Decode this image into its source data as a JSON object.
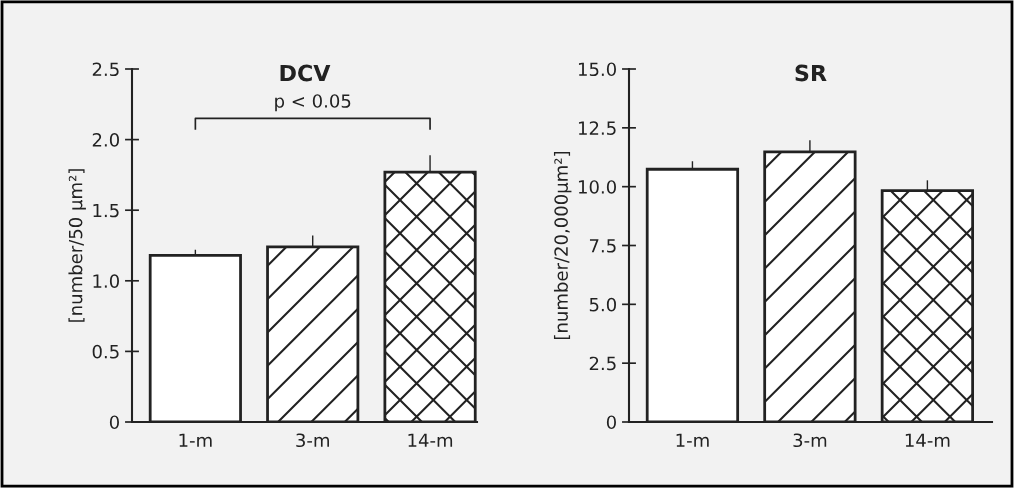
{
  "chart_data": [
    {
      "type": "bar",
      "title": "DCV",
      "ylabel": "[number/50 µm²]",
      "categories": [
        "1-m",
        "3-m",
        "14-m"
      ],
      "values": [
        1.18,
        1.24,
        1.77
      ],
      "color": "#ffffff",
      "errors": [
        [
          1.18,
          1.22
        ],
        [
          1.24,
          1.32
        ],
        [
          1.77,
          1.89
        ]
      ],
      "ylim": [
        0,
        2.5
      ],
      "yticks": [
        0,
        0.5,
        {
          "value": 1,
          "label": "1.0"
        },
        1.5,
        {
          "value": 2,
          "label": "2.0"
        },
        2.5
      ],
      "grid": false,
      "legend": false,
      "annotations": [
        "p < 0.05"
      ]
    },
    {
      "type": "bar",
      "title": "SR",
      "ylabel": "[number/20,000µm²]",
      "categories": [
        "1-m",
        "3-m",
        "14-m"
      ],
      "values": [
        10.74,
        11.48,
        9.83
      ],
      "color": "#ffffff",
      "errors": [
        [
          10.74,
          11.08
        ],
        [
          11.48,
          11.97
        ],
        [
          9.83,
          10.27
        ]
      ],
      "ylim": [
        0,
        15
      ],
      "yticks": [
        0,
        2.5,
        {
          "value": 5,
          "label": "5.0"
        },
        7.5,
        {
          "value": 10,
          "label": "10.0"
        },
        12.5,
        {
          "value": 15,
          "label": "15.0"
        }
      ],
      "grid": false,
      "legend": false
    }
  ]
}
